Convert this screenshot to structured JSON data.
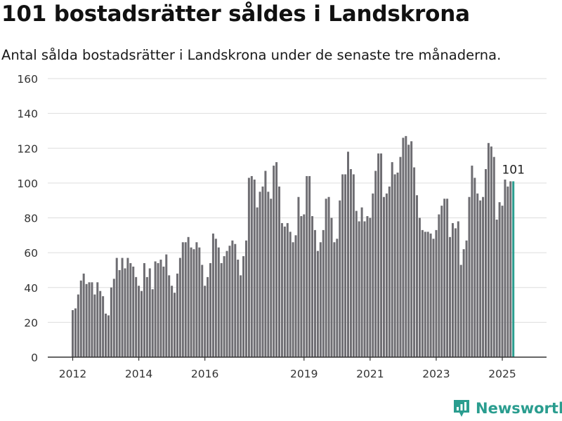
{
  "title": "101 bostadsrätter såldes i Landskrona",
  "subtitle": "Antal sålda bostadsrätter i Landskrona under de senaste tre månaderna.",
  "brand": "Newsworthy",
  "colors": {
    "bar": "#6e6d72",
    "highlight": "#2a9d8f",
    "grid": "#dddddd",
    "brand": "#2a9d8f"
  },
  "chart_data": {
    "type": "bar",
    "title": "",
    "xlabel": "",
    "ylabel": "",
    "ylim": [
      0,
      160
    ],
    "y_ticks": [
      0,
      20,
      40,
      60,
      80,
      100,
      120,
      140,
      160
    ],
    "x_ticks": [
      "2012",
      "2014",
      "2016",
      "2019",
      "2021",
      "2023",
      "2025"
    ],
    "grid": true,
    "start_period": "2012-01",
    "frequency": "monthly",
    "highlight_label": "101",
    "values": [
      27,
      28,
      36,
      44,
      48,
      42,
      43,
      43,
      36,
      43,
      38,
      35,
      25,
      24,
      40,
      45,
      57,
      50,
      57,
      51,
      57,
      54,
      52,
      46,
      41,
      38,
      54,
      46,
      51,
      39,
      55,
      54,
      56,
      52,
      59,
      47,
      41,
      37,
      48,
      57,
      66,
      66,
      69,
      63,
      62,
      66,
      63,
      53,
      41,
      46,
      54,
      71,
      68,
      63,
      54,
      58,
      61,
      64,
      67,
      65,
      56,
      47,
      58,
      67,
      103,
      104,
      102,
      86,
      95,
      98,
      107,
      95,
      91,
      110,
      112,
      98,
      77,
      75,
      77,
      72,
      66,
      70,
      92,
      81,
      82,
      104,
      104,
      81,
      73,
      61,
      66,
      73,
      91,
      92,
      80,
      66,
      68,
      90,
      105,
      105,
      118,
      108,
      105,
      84,
      78,
      86,
      78,
      81,
      80,
      94,
      107,
      117,
      117,
      92,
      94,
      98,
      112,
      105,
      106,
      115,
      126,
      127,
      122,
      124,
      109,
      93,
      80,
      73,
      72,
      72,
      71,
      68,
      73,
      82,
      87,
      91,
      91,
      69,
      77,
      74,
      78,
      53,
      62,
      67,
      92,
      110,
      103,
      94,
      90,
      92,
      108,
      123,
      121,
      115,
      79,
      89,
      87,
      102,
      98,
      101,
      101
    ]
  }
}
